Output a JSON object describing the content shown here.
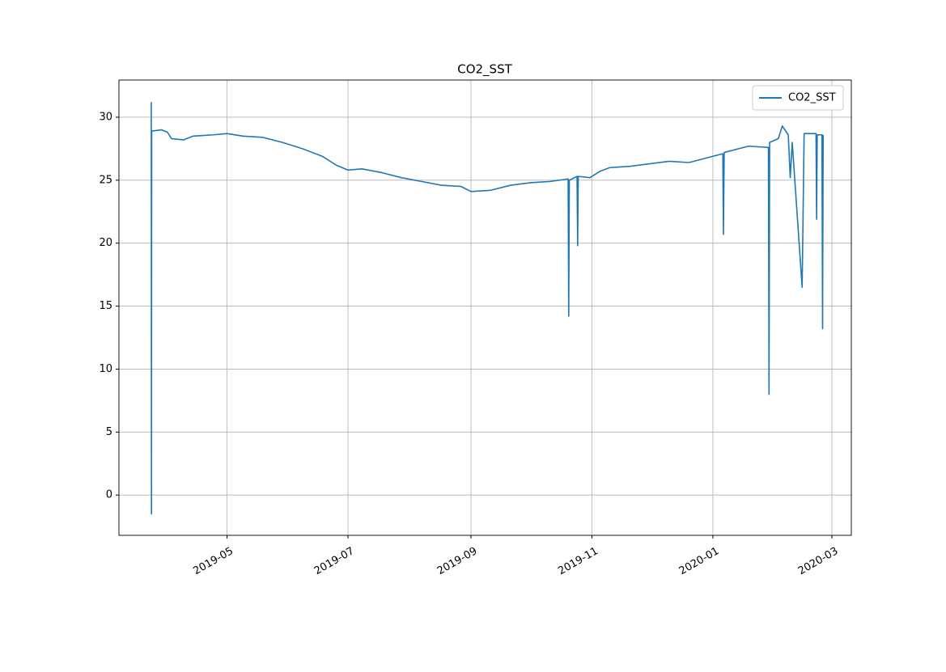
{
  "chart_data": {
    "type": "line",
    "title": "CO2_SST",
    "x": [
      17978.8,
      17978.9,
      17979.0,
      17984,
      17987,
      17989,
      17995,
      18000,
      18010,
      18017,
      18025,
      18035,
      18045,
      18055,
      18065,
      18072,
      18078,
      18085,
      18095,
      18105,
      18115,
      18125,
      18135,
      18140,
      18150,
      18160,
      18170,
      18180,
      18189,
      18189.3,
      18189.6,
      18193.5,
      18193.8,
      18194.1,
      18200,
      18205,
      18210,
      18220,
      18230,
      18240,
      18250,
      18262,
      18267,
      18267.3,
      18267.7,
      18275,
      18280,
      18290,
      18290.3,
      18290.6,
      18295,
      18297,
      18300,
      18301,
      18302,
      18307,
      18308,
      18314,
      18314.3,
      18314.6,
      18317,
      18317.3,
      18317.6
    ],
    "series": [
      {
        "name": "CO2_SST",
        "color": "#1f77b4",
        "values": [
          31.2,
          -1.5,
          28.9,
          29.0,
          28.8,
          28.3,
          28.2,
          28.5,
          28.6,
          28.7,
          28.5,
          28.4,
          28.0,
          27.5,
          26.9,
          26.2,
          25.8,
          25.9,
          25.6,
          25.2,
          24.9,
          24.6,
          24.5,
          24.1,
          24.2,
          24.6,
          24.8,
          24.9,
          25.1,
          14.2,
          25.0,
          25.3,
          19.8,
          25.3,
          25.2,
          25.7,
          26.0,
          26.1,
          26.3,
          26.5,
          26.4,
          26.9,
          27.1,
          20.7,
          27.2,
          27.5,
          27.7,
          27.6,
          8.0,
          28.0,
          28.3,
          29.3,
          28.6,
          25.2,
          28.0,
          16.5,
          28.7,
          28.7,
          21.9,
          28.6,
          28.6,
          13.2,
          28.6
        ]
      }
    ],
    "xlim": [
      17962.5,
      18331.8
    ],
    "xticks": [
      {
        "value": 18017,
        "label": "2019-05"
      },
      {
        "value": 18078,
        "label": "2019-07"
      },
      {
        "value": 18140,
        "label": "2019-09"
      },
      {
        "value": 18201,
        "label": "2019-11"
      },
      {
        "value": 18262,
        "label": "2020-01"
      },
      {
        "value": 18322,
        "label": "2020-03"
      }
    ],
    "ylim": [
      -3.2,
      32.95
    ],
    "yticks": [
      0,
      5,
      10,
      15,
      20,
      25,
      30
    ],
    "grid": true,
    "legend": "upper right"
  }
}
